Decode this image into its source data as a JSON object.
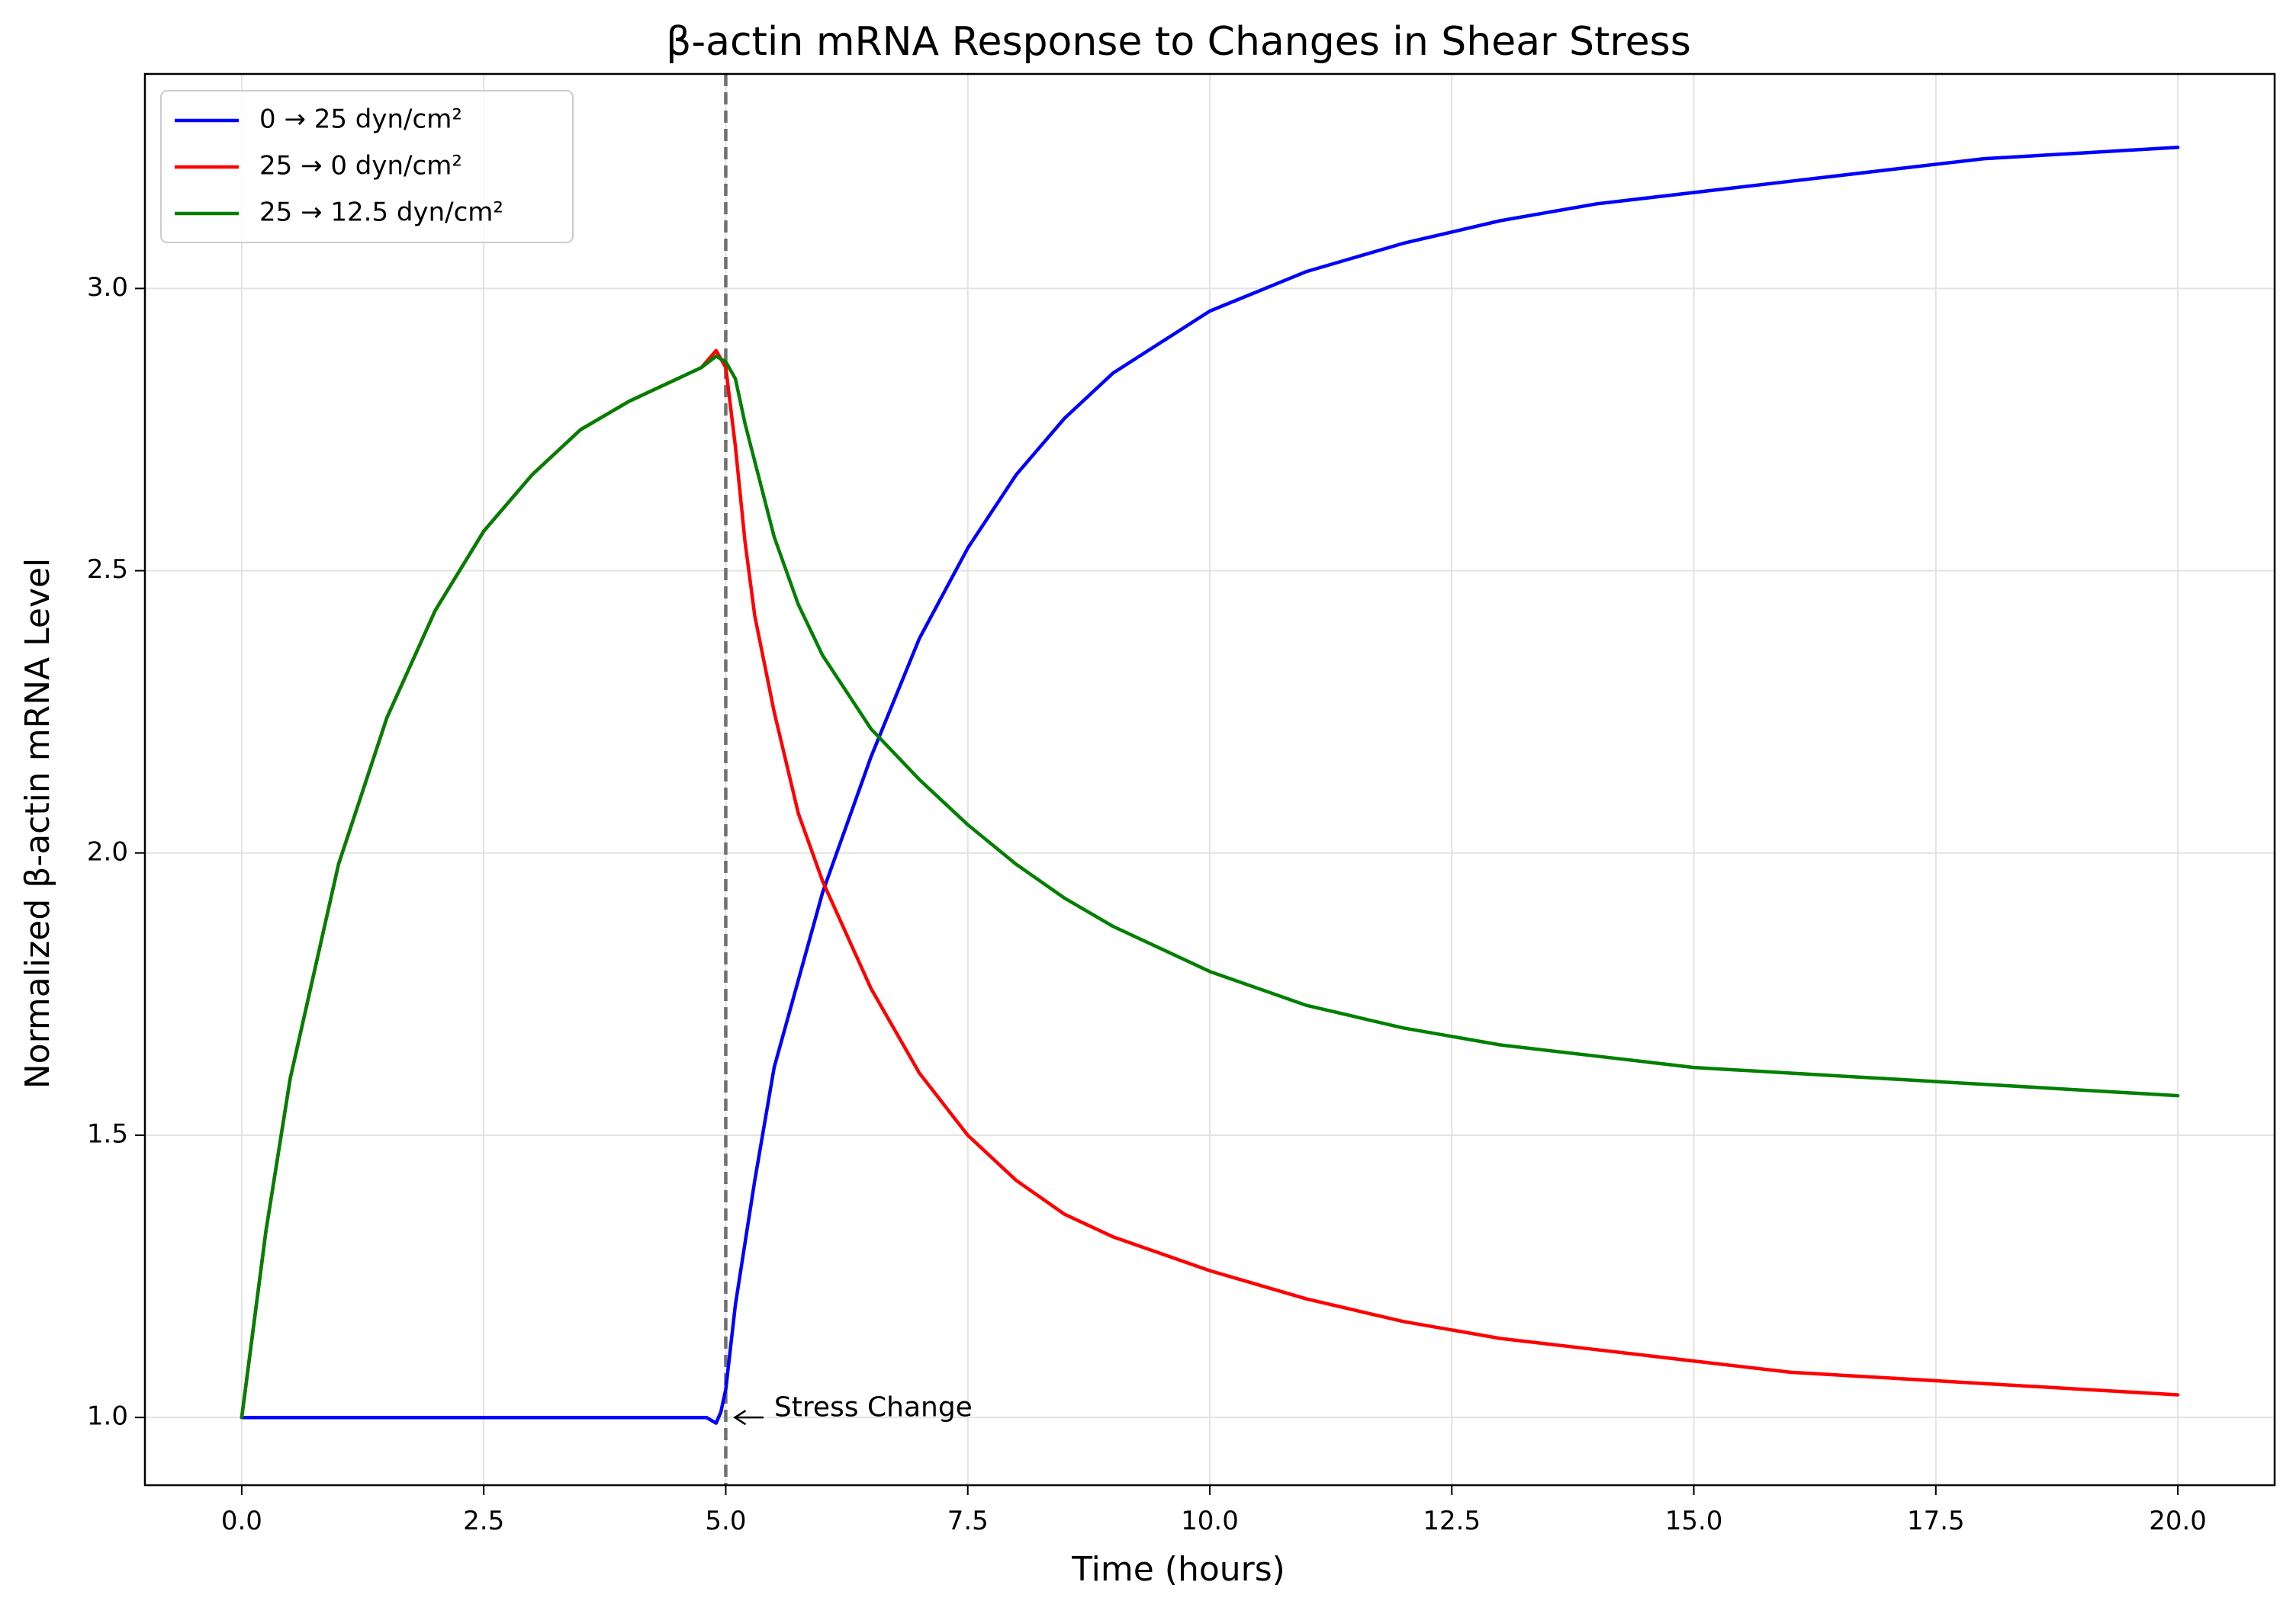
{
  "chart_data": {
    "type": "line",
    "title": "β-actin mRNA Response to Changes in Shear Stress",
    "xlabel": "Time (hours)",
    "ylabel": "Normalized β-actin mRNA Level",
    "xlim": [
      -1.0,
      21.0
    ],
    "ylim": [
      0.88,
      3.38
    ],
    "xticks": [
      0.0,
      2.5,
      5.0,
      7.5,
      10.0,
      12.5,
      15.0,
      17.5,
      20.0
    ],
    "xtick_labels": [
      "0.0",
      "2.5",
      "5.0",
      "7.5",
      "10.0",
      "12.5",
      "15.0",
      "17.5",
      "20.0"
    ],
    "yticks": [
      1.0,
      1.5,
      2.0,
      2.5,
      3.0
    ],
    "ytick_labels": [
      "1.0",
      "1.5",
      "2.0",
      "2.5",
      "3.0"
    ],
    "grid": true,
    "legend_position": "top-left",
    "vline": {
      "x": 5.0,
      "color": "#707070",
      "style": "dashed"
    },
    "annotation": {
      "text": "Stress Change",
      "x": 5.0,
      "y": 1.0,
      "text_x": 5.5,
      "text_y": 1.016
    },
    "series": [
      {
        "name": "0 → 25 dyn/cm²",
        "color": "#0000ff",
        "x": [
          0,
          1,
          2,
          3,
          4,
          4.8,
          4.9,
          4.95,
          5.0,
          5.1,
          5.3,
          5.5,
          6.0,
          6.5,
          7.0,
          7.5,
          8.0,
          8.5,
          9.0,
          10.0,
          11.0,
          12.0,
          13.0,
          14.0,
          15.0,
          16.0,
          17.0,
          18.0,
          19.0,
          20.0
        ],
        "y": [
          1.0,
          1.0,
          1.0,
          1.0,
          1.0,
          1.0,
          0.99,
          1.01,
          1.05,
          1.2,
          1.42,
          1.62,
          1.93,
          2.17,
          2.38,
          2.54,
          2.67,
          2.77,
          2.85,
          2.96,
          3.03,
          3.08,
          3.12,
          3.15,
          3.17,
          3.19,
          3.21,
          3.23,
          3.24,
          3.25
        ]
      },
      {
        "name": "25 → 0 dyn/cm²",
        "color": "#ff0000",
        "x": [
          0,
          0.25,
          0.5,
          1.0,
          1.5,
          2.0,
          2.5,
          3.0,
          3.5,
          4.0,
          4.5,
          4.75,
          4.9,
          5.0,
          5.1,
          5.2,
          5.3,
          5.5,
          5.75,
          6.0,
          6.5,
          7.0,
          7.5,
          8.0,
          8.5,
          9.0,
          10.0,
          11.0,
          12.0,
          13.0,
          14.0,
          15.0,
          16.0,
          17.0,
          18.0,
          19.0,
          20.0
        ],
        "y": [
          1.0,
          1.33,
          1.6,
          1.98,
          2.24,
          2.43,
          2.57,
          2.67,
          2.75,
          2.8,
          2.84,
          2.86,
          2.89,
          2.86,
          2.72,
          2.55,
          2.42,
          2.25,
          2.07,
          1.95,
          1.76,
          1.61,
          1.5,
          1.42,
          1.36,
          1.32,
          1.26,
          1.21,
          1.17,
          1.14,
          1.12,
          1.1,
          1.08,
          1.07,
          1.06,
          1.05,
          1.04
        ]
      },
      {
        "name": "25 → 12.5 dyn/cm²",
        "color": "#008000",
        "x": [
          0,
          0.25,
          0.5,
          1.0,
          1.5,
          2.0,
          2.5,
          3.0,
          3.5,
          4.0,
          4.5,
          4.75,
          4.9,
          5.0,
          5.1,
          5.2,
          5.35,
          5.5,
          5.75,
          6.0,
          6.5,
          7.0,
          7.5,
          8.0,
          8.5,
          9.0,
          10.0,
          11.0,
          12.0,
          13.0,
          14.0,
          15.0,
          16.0,
          17.0,
          18.0,
          19.0,
          20.0
        ],
        "y": [
          1.0,
          1.33,
          1.6,
          1.98,
          2.24,
          2.43,
          2.57,
          2.67,
          2.75,
          2.8,
          2.84,
          2.86,
          2.88,
          2.87,
          2.84,
          2.76,
          2.66,
          2.56,
          2.44,
          2.35,
          2.22,
          2.13,
          2.05,
          1.98,
          1.92,
          1.87,
          1.79,
          1.73,
          1.69,
          1.66,
          1.64,
          1.62,
          1.61,
          1.6,
          1.59,
          1.58,
          1.57
        ]
      }
    ]
  }
}
